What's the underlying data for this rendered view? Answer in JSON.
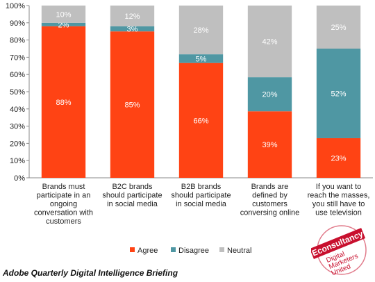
{
  "chart_data": {
    "type": "bar",
    "stacked": true,
    "percent_scale": true,
    "categories": [
      [
        "Brands must",
        "participate in an",
        "ongoing",
        "conversation with",
        "customers"
      ],
      [
        "B2C brands",
        "should participate",
        "in social media"
      ],
      [
        "B2B brands",
        "should participate",
        "in social media"
      ],
      [
        "Brands are",
        "defined by",
        "customers",
        "conversing online"
      ],
      [
        "If you want to",
        "reach the masses,",
        "you still have to",
        "use television"
      ]
    ],
    "series": [
      {
        "name": "Agree",
        "values": [
          88,
          85,
          66,
          39,
          23
        ],
        "color": "#FF4314",
        "label_color": "#ffffff"
      },
      {
        "name": "Disagree",
        "values": [
          2,
          3,
          5,
          20,
          52
        ],
        "color": "#4F97A3",
        "label_color": "#ffffff"
      },
      {
        "name": "Neutral",
        "values": [
          10,
          12,
          28,
          42,
          25
        ],
        "color": "#BFBFBF",
        "label_color": "#ffffff"
      }
    ],
    "y_ticks": [
      "0%",
      "10%",
      "20%",
      "30%",
      "40%",
      "50%",
      "60%",
      "70%",
      "80%",
      "90%",
      "100%"
    ],
    "ylim": [
      0,
      100
    ],
    "grid": false,
    "legend_position": "bottom"
  },
  "source": "Adobe Quarterly Digital Intelligence Briefing",
  "logo": {
    "name": "Econsultancy",
    "tagline": [
      "Digital",
      "Marketers",
      "United"
    ],
    "color": "#C8102E"
  }
}
